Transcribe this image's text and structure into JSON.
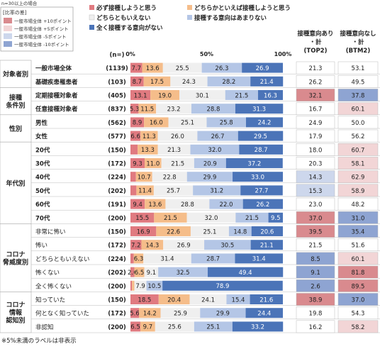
{
  "chart_data": {
    "type": "bar",
    "stacked_percent": true,
    "note_top": "n=30以上の場合",
    "legend_diff": {
      "title": "[比率の差]",
      "items": [
        {
          "label": "一般市場全体 +10ポイント",
          "color": "#d98a8e"
        },
        {
          "label": "一般市場全体 +5ポイント",
          "color": "#f2d5d6"
        },
        {
          "label": "一般市場全体 -5ポイント",
          "color": "#cdd7ec"
        },
        {
          "label": "一般市場全体 -10ポイント",
          "color": "#8ea4d2"
        }
      ]
    },
    "series": [
      {
        "name": "必ず接種しようと思う",
        "color": "#e07a80"
      },
      {
        "name": "どちらかといえば接種しようと思う",
        "color": "#f5bd8a"
      },
      {
        "name": "どちらともいえない",
        "color": "#efefef"
      },
      {
        "name": "接種する意向はあまりない",
        "color": "#b4c6e6"
      },
      {
        "name": "全く接種する意向がない",
        "color": "#4b74b8"
      }
    ],
    "n_label": "(n=)",
    "axis_ticks": [
      "0%",
      "50%",
      "100%"
    ],
    "right_headers": [
      "接種意向あり・計\n(TOP2)",
      "接種意向なし・計\n(BTM2)"
    ],
    "groups": [
      {
        "label": "対象者別",
        "rows": [
          0,
          1
        ]
      },
      {
        "label": "接種\n条件別",
        "rows": [
          2,
          3
        ]
      },
      {
        "label": "性別",
        "rows": [
          4,
          5
        ]
      },
      {
        "label": "年代別",
        "rows": [
          6,
          7,
          8,
          9,
          10,
          11
        ]
      },
      {
        "label": "コロナ\n脅威度別",
        "rows": [
          12,
          13,
          14,
          15,
          16
        ]
      },
      {
        "label": "コロナ\n情報\n認知別",
        "rows": [
          17,
          18,
          19
        ]
      }
    ],
    "rows": [
      {
        "label": "一般市場全体",
        "n": 1139,
        "values": [
          7.7,
          13.6,
          25.5,
          26.3,
          26.9
        ],
        "labels": [
          "7.7",
          "13.6",
          "25.5",
          "26.3",
          "26.9"
        ],
        "top2": 21.3,
        "btm2": 53.1,
        "hl_top2": "",
        "hl_btm2": "",
        "bold": true
      },
      {
        "label": "基礎疾患罹患者",
        "n": 103,
        "values": [
          8.7,
          17.5,
          24.3,
          28.2,
          21.4
        ],
        "labels": [
          "8.7",
          "17.5",
          "24.3",
          "28.2",
          "21.4"
        ],
        "top2": 26.2,
        "btm2": 49.5,
        "hl_top2": "",
        "hl_btm2": "",
        "bold": true
      },
      {
        "label": "定期接種対象者",
        "n": 405,
        "values": [
          13.1,
          19.0,
          30.1,
          21.5,
          16.3
        ],
        "labels": [
          "13.1",
          "19.0",
          "30.1",
          "21.5",
          "16.3"
        ],
        "top2": 32.1,
        "btm2": 37.8,
        "hl_top2": "p10",
        "hl_btm2": "m10",
        "bold": true
      },
      {
        "label": "任意接種対象者",
        "n": 837,
        "values": [
          5.3,
          11.5,
          23.2,
          28.8,
          31.3
        ],
        "labels": [
          "5.3",
          "11.5",
          "23.2",
          "28.8",
          "31.3"
        ],
        "top2": 16.7,
        "btm2": 60.1,
        "hl_top2": "",
        "hl_btm2": "p5",
        "bold": true
      },
      {
        "label": "男性",
        "n": 562,
        "values": [
          8.9,
          16.0,
          25.1,
          25.8,
          24.2
        ],
        "labels": [
          "8.9",
          "16.0",
          "25.1",
          "25.8",
          "24.2"
        ],
        "top2": 24.9,
        "btm2": 50.0,
        "hl_top2": "",
        "hl_btm2": "",
        "bold": true
      },
      {
        "label": "女性",
        "n": 577,
        "values": [
          6.6,
          11.3,
          26.0,
          26.7,
          29.5
        ],
        "labels": [
          "6.6",
          "11.3",
          "26.0",
          "26.7",
          "29.5"
        ],
        "top2": 17.9,
        "btm2": 56.2,
        "hl_top2": "",
        "hl_btm2": "",
        "bold": true
      },
      {
        "label": "20代",
        "n": 150,
        "values": [
          4.7,
          13.3,
          21.3,
          32.0,
          28.7
        ],
        "labels": [
          "",
          "13.3",
          "21.3",
          "32.0",
          "28.7"
        ],
        "top2": 18.0,
        "btm2": 60.7,
        "hl_top2": "",
        "hl_btm2": "p5",
        "bold": true
      },
      {
        "label": "30代",
        "n": 172,
        "values": [
          9.3,
          11.0,
          21.5,
          20.9,
          37.2
        ],
        "labels": [
          "9.3",
          "11.0",
          "21.5",
          "20.9",
          "37.2"
        ],
        "top2": 20.3,
        "btm2": 58.1,
        "hl_top2": "",
        "hl_btm2": "p5",
        "bold": true
      },
      {
        "label": "40代",
        "n": 224,
        "values": [
          3.6,
          10.7,
          22.8,
          29.9,
          33.0
        ],
        "labels": [
          "",
          "10.7",
          "22.8",
          "29.9",
          "33.0"
        ],
        "top2": 14.3,
        "btm2": 62.9,
        "hl_top2": "m5",
        "hl_btm2": "p5",
        "bold": true
      },
      {
        "label": "50代",
        "n": 202,
        "values": [
          3.9,
          11.4,
          25.7,
          31.2,
          27.7
        ],
        "labels": [
          "",
          "11.4",
          "25.7",
          "31.2",
          "27.7"
        ],
        "top2": 15.3,
        "btm2": 58.9,
        "hl_top2": "m5",
        "hl_btm2": "p5",
        "bold": true
      },
      {
        "label": "60代",
        "n": 191,
        "values": [
          9.4,
          13.6,
          28.8,
          22.0,
          26.2
        ],
        "labels": [
          "9.4",
          "13.6",
          "28.8",
          "22.0",
          "26.2"
        ],
        "top2": 23.0,
        "btm2": 48.2,
        "hl_top2": "",
        "hl_btm2": "",
        "bold": true
      },
      {
        "label": "70代",
        "n": 200,
        "values": [
          15.5,
          21.5,
          32.0,
          21.5,
          9.5
        ],
        "labels": [
          "15.5",
          "21.5",
          "32.0",
          "21.5",
          "9.5"
        ],
        "top2": 37.0,
        "btm2": 31.0,
        "hl_top2": "p10",
        "hl_btm2": "m10",
        "bold": true
      },
      {
        "label": "非常に怖い",
        "n": 150,
        "values": [
          16.9,
          22.6,
          25.1,
          14.8,
          20.6
        ],
        "labels": [
          "16.9",
          "22.6",
          "25.1",
          "14.8",
          "20.6"
        ],
        "top2": 39.5,
        "btm2": 35.4,
        "hl_top2": "p10",
        "hl_btm2": "m10",
        "bold": false
      },
      {
        "label": "怖い",
        "n": 172,
        "values": [
          7.2,
          14.3,
          26.9,
          30.5,
          21.1
        ],
        "labels": [
          "7.2",
          "14.3",
          "26.9",
          "30.5",
          "21.1"
        ],
        "top2": 21.5,
        "btm2": 51.6,
        "hl_top2": "",
        "hl_btm2": "",
        "bold": false
      },
      {
        "label": "どちらともいえない",
        "n": 224,
        "values": [
          2.2,
          6.3,
          31.4,
          28.7,
          31.4
        ],
        "labels": [
          "",
          "6.3",
          "31.4",
          "28.7",
          "31.4"
        ],
        "top2": 8.5,
        "btm2": 60.1,
        "hl_top2": "m10",
        "hl_btm2": "p5",
        "bold": false
      },
      {
        "label": "怖くない",
        "n": 202,
        "values": [
          2.6,
          6.5,
          9.1,
          32.5,
          49.4
        ],
        "labels": [
          "2.6",
          "6.5",
          "9.1",
          "32.5",
          "49.4"
        ],
        "top2": 9.1,
        "btm2": 81.8,
        "hl_top2": "m10",
        "hl_btm2": "p10",
        "bold": false
      },
      {
        "label": "全く怖くない",
        "n": 200,
        "values": [
          1.0,
          1.6,
          7.9,
          10.5,
          78.9
        ],
        "labels": [
          "",
          "",
          "7.9",
          "10.5",
          "78.9"
        ],
        "top2": 2.6,
        "btm2": 89.5,
        "hl_top2": "m10",
        "hl_btm2": "p10",
        "bold": false
      },
      {
        "label": "知っていた",
        "n": 150,
        "values": [
          18.5,
          20.4,
          24.1,
          15.4,
          21.6
        ],
        "labels": [
          "18.5",
          "20.4",
          "24.1",
          "15.4",
          "21.6"
        ],
        "top2": 38.9,
        "btm2": 37.0,
        "hl_top2": "p10",
        "hl_btm2": "m10",
        "bold": false
      },
      {
        "label": "何となく知っていた",
        "n": 172,
        "values": [
          5.6,
          14.2,
          25.9,
          29.9,
          24.4
        ],
        "labels": [
          "5.6",
          "14.2",
          "25.9",
          "29.9",
          "24.4"
        ],
        "top2": 19.8,
        "btm2": 54.3,
        "hl_top2": "",
        "hl_btm2": "",
        "bold": false
      },
      {
        "label": "非認知",
        "n": 200,
        "values": [
          6.5,
          9.7,
          25.6,
          25.1,
          33.2
        ],
        "labels": [
          "6.5",
          "9.7",
          "25.6",
          "25.1",
          "33.2"
        ],
        "top2": 16.2,
        "btm2": 58.2,
        "hl_top2": "",
        "hl_btm2": "p5",
        "bold": false
      }
    ],
    "footnote": "※5%未満のラベルは非表示"
  }
}
